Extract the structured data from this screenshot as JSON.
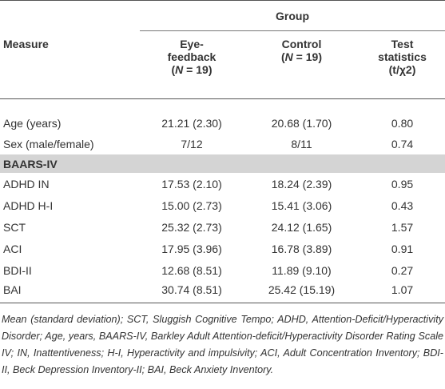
{
  "table": {
    "group_header": "Group",
    "columns": [
      {
        "name": "Measure"
      },
      {
        "name": "Eye-feedback",
        "sample": [
          "(",
          "N",
          " = 19)"
        ]
      },
      {
        "name": "Control",
        "sample": [
          "(",
          "N",
          " = 19)"
        ]
      },
      {
        "name": "Test statistics",
        "unit": "(t/χ2)"
      }
    ],
    "rows": [
      [
        "Age (years)",
        "21.21 (2.30)",
        "20.68 (1.70)",
        "0.80"
      ],
      [
        "Sex (male/female)",
        "7/12",
        "8/11",
        "0.74"
      ]
    ],
    "section": "BAARS-IV",
    "section_rows": [
      [
        "ADHD IN",
        "17.53 (2.10)",
        "18.24 (2.39)",
        "0.95"
      ],
      [
        "ADHD H-I",
        "15.00 (2.73)",
        "15.41 (3.06)",
        "0.43"
      ],
      [
        "SCT",
        "25.32 (2.73)",
        "24.12 (1.65)",
        "1.57"
      ],
      [
        "ACI",
        "17.95 (3.96)",
        "16.78 (3.89)",
        "0.91"
      ],
      [
        "BDI-II",
        "12.68 (8.51)",
        "11.89 (9.10)",
        "0.27"
      ],
      [
        "BAI",
        "30.74 (8.51)",
        "25.42 (15.19)",
        "1.07"
      ]
    ],
    "footnote": "Mean (standard deviation); SCT, Sluggish Cognitive Tempo; ADHD, Attention-Deficit/Hyperactivity Disorder; Age, years, BAARS-IV, Barkley Adult Attention-deficit/Hyperactivity Disorder Rating Scale IV; IN, Inattentiveness; H-I, Hyperactivity and impulsivity; ACI, Adult Concentration Inventory; BDI-II, Beck Depression Inventory-II; BAI, Beck Anxiety Inventory."
  }
}
